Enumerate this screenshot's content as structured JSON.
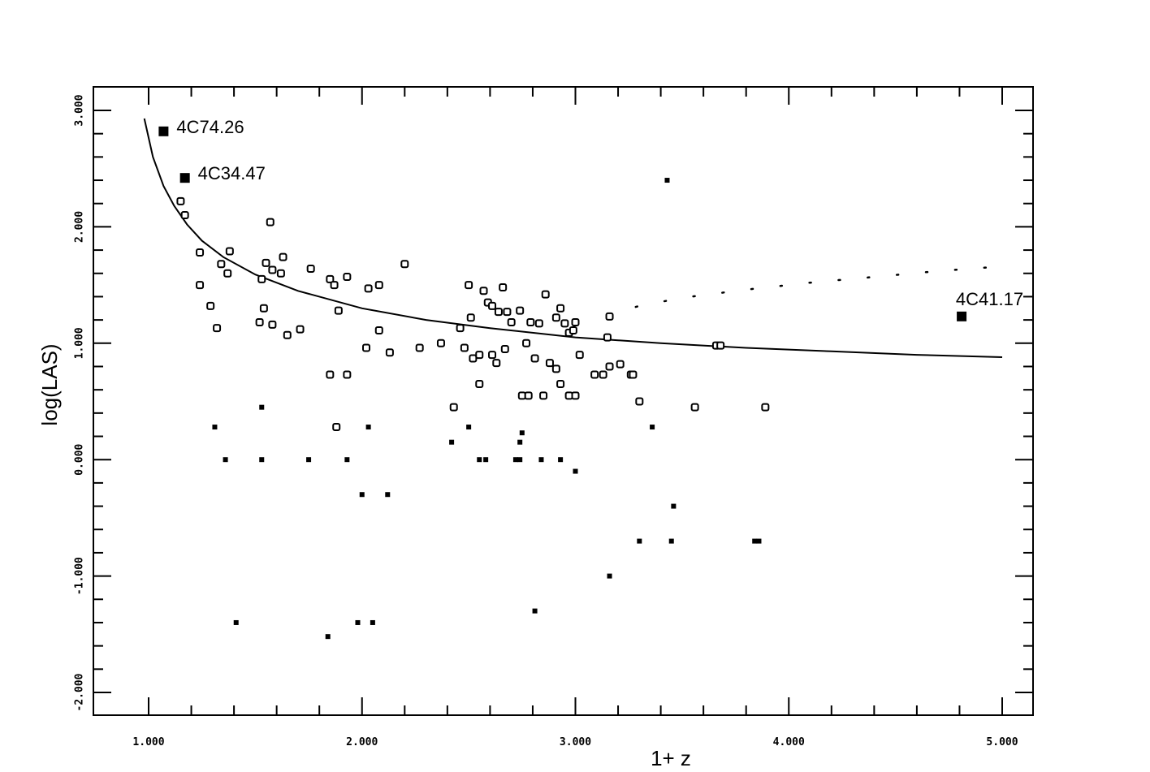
{
  "chart_data": {
    "type": "scatter",
    "xlabel": "1+ z",
    "ylabel": "log(LAS)",
    "xlim": [
      0.9,
      5.4
    ],
    "ylim": [
      -2.1,
      3.1
    ],
    "xticks": [
      1,
      2,
      3,
      4,
      5
    ],
    "xtick_labels": [
      "1.000",
      "2.000",
      "3.000",
      "4.000",
      "5.000"
    ],
    "yticks": [
      3,
      2,
      1,
      0,
      -1,
      -2
    ],
    "ytick_labels": [
      "3.000",
      "2.000",
      "1.000",
      "0.000",
      "-1.000",
      "-2.000"
    ],
    "grid": false,
    "legend": "none",
    "series": [
      {
        "marker": "open-square",
        "points": [
          [
            1.15,
            2.22
          ],
          [
            1.17,
            2.1
          ],
          [
            1.24,
            1.78
          ],
          [
            1.34,
            1.68
          ],
          [
            1.38,
            1.79
          ],
          [
            1.24,
            1.5
          ],
          [
            1.29,
            1.32
          ],
          [
            1.32,
            1.13
          ],
          [
            1.37,
            1.6
          ],
          [
            1.53,
            1.55
          ],
          [
            1.55,
            1.69
          ],
          [
            1.58,
            1.63
          ],
          [
            1.62,
            1.6
          ],
          [
            1.63,
            1.74
          ],
          [
            1.57,
            2.04
          ],
          [
            1.54,
            1.3
          ],
          [
            1.52,
            1.18
          ],
          [
            1.58,
            1.16
          ],
          [
            1.65,
            1.07
          ],
          [
            1.71,
            1.12
          ],
          [
            1.76,
            1.64
          ],
          [
            1.85,
            1.55
          ],
          [
            1.87,
            1.5
          ],
          [
            1.89,
            1.28
          ],
          [
            1.93,
            1.57
          ],
          [
            2.03,
            1.47
          ],
          [
            2.08,
            1.5
          ],
          [
            2.02,
            0.96
          ],
          [
            2.08,
            1.11
          ],
          [
            2.13,
            0.92
          ],
          [
            2.2,
            1.68
          ],
          [
            2.27,
            0.96
          ],
          [
            2.37,
            1.0
          ],
          [
            2.46,
            1.13
          ],
          [
            2.48,
            0.96
          ],
          [
            2.5,
            1.5
          ],
          [
            2.51,
            1.22
          ],
          [
            2.52,
            0.87
          ],
          [
            2.55,
            0.9
          ],
          [
            2.57,
            1.45
          ],
          [
            2.59,
            1.35
          ],
          [
            2.61,
            1.32
          ],
          [
            2.64,
            1.27
          ],
          [
            2.66,
            1.48
          ],
          [
            2.68,
            1.27
          ],
          [
            2.7,
            1.18
          ],
          [
            2.74,
            1.28
          ],
          [
            2.77,
            1.0
          ],
          [
            2.79,
            1.18
          ],
          [
            2.81,
            0.87
          ],
          [
            2.83,
            1.17
          ],
          [
            2.86,
            1.42
          ],
          [
            2.88,
            0.83
          ],
          [
            2.91,
            1.22
          ],
          [
            2.93,
            1.3
          ],
          [
            2.95,
            1.17
          ],
          [
            2.97,
            1.09
          ],
          [
            2.99,
            1.11
          ],
          [
            3.0,
            1.18
          ],
          [
            2.63,
            0.83
          ],
          [
            2.61,
            0.9
          ],
          [
            2.67,
            0.95
          ],
          [
            2.55,
            0.65
          ],
          [
            2.91,
            0.78
          ],
          [
            2.93,
            0.65
          ],
          [
            3.02,
            0.9
          ],
          [
            3.09,
            0.73
          ],
          [
            3.13,
            0.73
          ],
          [
            3.15,
            1.05
          ],
          [
            3.16,
            1.23
          ],
          [
            3.21,
            0.82
          ],
          [
            3.26,
            0.73
          ],
          [
            3.27,
            0.73
          ],
          [
            3.3,
            0.5
          ],
          [
            3.66,
            0.98
          ],
          [
            3.68,
            0.98
          ],
          [
            3.56,
            0.45
          ],
          [
            3.89,
            0.45
          ],
          [
            2.43,
            0.45
          ],
          [
            1.85,
            0.73
          ],
          [
            1.93,
            0.73
          ],
          [
            1.88,
            0.28
          ],
          [
            2.75,
            0.55
          ],
          [
            2.78,
            0.55
          ],
          [
            2.85,
            0.55
          ],
          [
            2.97,
            0.55
          ],
          [
            3.0,
            0.55
          ],
          [
            3.16,
            0.8
          ]
        ]
      },
      {
        "marker": "filled-square",
        "points": [
          [
            1.31,
            0.28
          ],
          [
            1.36,
            0.0
          ],
          [
            1.53,
            0.45
          ],
          [
            1.53,
            0.0
          ],
          [
            1.75,
            0.0
          ],
          [
            1.93,
            0.0
          ],
          [
            2.03,
            0.28
          ],
          [
            2.0,
            -0.3
          ],
          [
            2.12,
            -0.3
          ],
          [
            2.42,
            0.15
          ],
          [
            2.5,
            0.28
          ],
          [
            2.55,
            0.0
          ],
          [
            2.58,
            0.0
          ],
          [
            2.72,
            0.0
          ],
          [
            2.74,
            0.0
          ],
          [
            2.74,
            0.15
          ],
          [
            2.75,
            0.23
          ],
          [
            2.84,
            0.0
          ],
          [
            2.93,
            0.0
          ],
          [
            3.0,
            -0.1
          ],
          [
            3.43,
            2.4
          ],
          [
            3.36,
            0.28
          ],
          [
            3.46,
            -0.4
          ],
          [
            3.45,
            -0.7
          ],
          [
            3.3,
            -0.7
          ],
          [
            3.16,
            -1.0
          ],
          [
            2.81,
            -1.3
          ],
          [
            1.41,
            -1.4
          ],
          [
            1.84,
            -1.52
          ],
          [
            1.98,
            -1.4
          ],
          [
            2.05,
            -1.4
          ],
          [
            3.84,
            -0.7
          ],
          [
            3.86,
            -0.7
          ]
        ]
      },
      {
        "marker": "large-filled-square",
        "points": [
          [
            1.07,
            2.82
          ],
          [
            1.17,
            2.42
          ],
          [
            4.81,
            1.23
          ]
        ]
      },
      {
        "marker": "curve",
        "points": [
          [
            0.98,
            2.93
          ],
          [
            1.02,
            2.6
          ],
          [
            1.07,
            2.35
          ],
          [
            1.12,
            2.18
          ],
          [
            1.18,
            2.02
          ],
          [
            1.25,
            1.88
          ],
          [
            1.35,
            1.74
          ],
          [
            1.5,
            1.59
          ],
          [
            1.7,
            1.45
          ],
          [
            2.0,
            1.3
          ],
          [
            2.3,
            1.2
          ],
          [
            2.6,
            1.13
          ],
          [
            3.0,
            1.05
          ],
          [
            3.4,
            1.0
          ],
          [
            3.8,
            0.96
          ],
          [
            4.2,
            0.93
          ],
          [
            4.6,
            0.9
          ],
          [
            5.0,
            0.88
          ]
        ]
      },
      {
        "marker": "dotted-curve",
        "points": [
          [
            3.15,
            1.25
          ],
          [
            3.3,
            1.32
          ],
          [
            3.5,
            1.39
          ],
          [
            3.8,
            1.46
          ],
          [
            4.1,
            1.52
          ],
          [
            4.4,
            1.57
          ],
          [
            4.7,
            1.62
          ],
          [
            5.0,
            1.66
          ]
        ]
      }
    ],
    "annotations": [
      {
        "text": "4C74.26",
        "x": 1.07,
        "y": 2.82
      },
      {
        "text": "4C34.47",
        "x": 1.17,
        "y": 2.42
      },
      {
        "text": "4C41.17",
        "x": 4.81,
        "y": 1.23
      }
    ]
  }
}
